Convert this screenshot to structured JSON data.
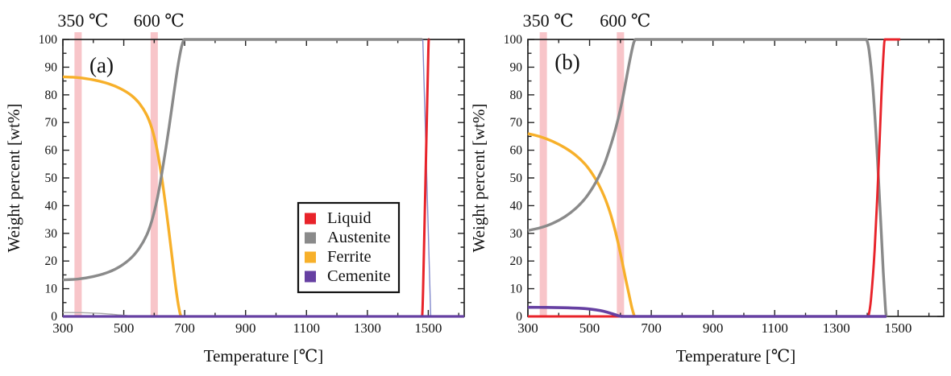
{
  "palette": {
    "liquid": "#e8232a",
    "austenite": "#8a8a8a",
    "ferrite": "#f7b02a",
    "cemenite": "#6640a2",
    "thin_blue": "#8289cc",
    "thin_gray": "#a6a6a6",
    "band": "#f8c5c9",
    "axis": "#222222",
    "text": "#111111"
  },
  "legend": {
    "entries": [
      {
        "label": "Liquid",
        "color": "liquid"
      },
      {
        "label": "Austenite",
        "color": "austenite"
      },
      {
        "label": "Ferrite",
        "color": "ferrite"
      },
      {
        "label": "Cemenite",
        "color": "cemenite"
      }
    ]
  },
  "chart_data": [
    {
      "id": "a",
      "type": "line",
      "panel_label": "(a)",
      "xlabel": "Temperature [℃]",
      "ylabel": "Weight percent [wt%]",
      "x_axis": {
        "min": 300,
        "max": 1618,
        "major_ticks": [
          300,
          500,
          700,
          900,
          1100,
          1300,
          1500
        ],
        "minor_ticks": [
          400,
          600,
          800,
          1000,
          1200,
          1400,
          1600
        ]
      },
      "y_axis": {
        "min": 0,
        "max": 100,
        "major_ticks": [
          0,
          10,
          20,
          30,
          40,
          50,
          60,
          70,
          80,
          90,
          100
        ],
        "minor_step": 5
      },
      "ylim": [
        0,
        100
      ],
      "bands": [
        {
          "t": 350,
          "label": "350 ℃"
        },
        {
          "t": 600,
          "label": "600 ℃"
        }
      ],
      "series": [
        {
          "name": "austenite-trace-low",
          "color": "thin_gray",
          "width": 1.4,
          "segments": [
            {
              "smooth": true,
              "points": [
                [
                  300,
                  1.4
                ],
                [
                  360,
                  1.35
                ],
                [
                  420,
                  1.1
                ],
                [
                  465,
                  0.75
                ],
                [
                  500,
                  0.4
                ],
                [
                  528,
                  0.12
                ],
                [
                  548,
                  0
                ]
              ]
            }
          ]
        },
        {
          "name": "Ferrite",
          "color": "ferrite",
          "width": 3.4,
          "segments": [
            {
              "smooth": true,
              "points": [
                [
                  300,
                  86.5
                ],
                [
                  350,
                  86.2
                ],
                [
                  400,
                  85.4
                ],
                [
                  450,
                  84
                ],
                [
                  490,
                  82.2
                ],
                [
                  525,
                  79.8
                ],
                [
                  552,
                  76.8
                ],
                [
                  575,
                  72.8
                ],
                [
                  592,
                  68
                ],
                [
                  606,
                  62
                ],
                [
                  617,
                  55.5
                ],
                [
                  627,
                  48.5
                ],
                [
                  637,
                  40.5
                ],
                [
                  648,
                  31
                ],
                [
                  659,
                  21
                ],
                [
                  669,
                  12
                ],
                [
                  678,
                  5
                ],
                [
                  685,
                  1
                ],
                [
                  689,
                  0
                ]
              ]
            }
          ]
        },
        {
          "name": "Austenite",
          "color": "austenite",
          "width": 3.4,
          "segments": [
            {
              "smooth": true,
              "points": [
                [
                  300,
                  13.2
                ],
                [
                  350,
                  13.5
                ],
                [
                  400,
                  14.4
                ],
                [
                  450,
                  16
                ],
                [
                  490,
                  18.2
                ],
                [
                  525,
                  21.2
                ],
                [
                  552,
                  24.8
                ],
                [
                  575,
                  29.3
                ],
                [
                  592,
                  34.5
                ],
                [
                  606,
                  40.5
                ],
                [
                  617,
                  46.5
                ],
                [
                  627,
                  53
                ],
                [
                  638,
                  60.5
                ],
                [
                  649,
                  68.5
                ],
                [
                  660,
                  77
                ],
                [
                  671,
                  85.5
                ],
                [
                  681,
                  92.5
                ],
                [
                  690,
                  97.5
                ],
                [
                  697,
                  99.8
                ],
                [
                  700,
                  100
                ]
              ]
            },
            {
              "smooth": false,
              "points": [
                [
                  700,
                  100
                ],
                [
                  1480,
                  100
                ]
              ]
            }
          ]
        },
        {
          "name": "austenite-melt-thin",
          "color": "thin_blue",
          "width": 1.4,
          "segments": [
            {
              "smooth": false,
              "points": [
                [
                  1482,
                  100
                ],
                [
                  1508,
                  0
                ]
              ]
            }
          ]
        },
        {
          "name": "Liquid",
          "color": "liquid",
          "width": 3.0,
          "segments": [
            {
              "smooth": false,
              "points": [
                [
                  300,
                  0
                ],
                [
                  1480,
                  0
                ]
              ]
            },
            {
              "smooth": true,
              "points": [
                [
                  1480,
                  0
                ],
                [
                  1483,
                  10
                ],
                [
                  1492,
                  55
                ],
                [
                  1500,
                  95
                ],
                [
                  1502,
                  100
                ]
              ]
            }
          ]
        },
        {
          "name": "Cemenite",
          "color": "cemenite",
          "width": 3.2,
          "segments": [
            {
              "smooth": false,
              "points": [
                [
                  300,
                  0
                ],
                [
                  1618,
                  0
                ]
              ]
            }
          ]
        }
      ]
    },
    {
      "id": "b",
      "type": "line",
      "panel_label": "(b)",
      "xlabel": "Temperature [℃]",
      "ylabel": "Weight percent [wt%]",
      "x_axis": {
        "min": 300,
        "max": 1648,
        "major_ticks": [
          300,
          500,
          700,
          900,
          1100,
          1300,
          1500
        ],
        "minor_ticks": [
          400,
          600,
          800,
          1000,
          1200,
          1400,
          1600
        ]
      },
      "y_axis": {
        "min": 0,
        "max": 100,
        "major_ticks": [
          0,
          10,
          20,
          30,
          40,
          50,
          60,
          70,
          80,
          90,
          100
        ],
        "minor_step": 5
      },
      "ylim": [
        0,
        100
      ],
      "bands": [
        {
          "t": 350,
          "label": "350 ℃"
        },
        {
          "t": 600,
          "label": "600 ℃"
        }
      ],
      "series": [
        {
          "name": "Ferrite",
          "color": "ferrite",
          "width": 3.4,
          "segments": [
            {
              "smooth": true,
              "points": [
                [
                  300,
                  66
                ],
                [
                  340,
                  64.9
                ],
                [
                  380,
                  63.2
                ],
                [
                  420,
                  60.9
                ],
                [
                  455,
                  58.2
                ],
                [
                  485,
                  55
                ],
                [
                  510,
                  51.3
                ],
                [
                  530,
                  47.5
                ],
                [
                  548,
                  43.2
                ],
                [
                  565,
                  38
                ],
                [
                  580,
                  32.2
                ],
                [
                  594,
                  25.8
                ],
                [
                  606,
                  19.5
                ],
                [
                  617,
                  13.5
                ],
                [
                  628,
                  7.8
                ],
                [
                  637,
                  3.2
                ],
                [
                  644,
                  0.5
                ],
                [
                  647,
                  0
                ]
              ]
            }
          ]
        },
        {
          "name": "Austenite",
          "color": "austenite",
          "width": 3.4,
          "segments": [
            {
              "smooth": true,
              "points": [
                [
                  300,
                  31
                ],
                [
                  340,
                  32
                ],
                [
                  380,
                  33.6
                ],
                [
                  420,
                  36
                ],
                [
                  455,
                  39
                ],
                [
                  485,
                  42.5
                ],
                [
                  510,
                  46.5
                ],
                [
                  530,
                  50.5
                ],
                [
                  548,
                  55
                ],
                [
                  565,
                  60.5
                ],
                [
                  580,
                  66
                ],
                [
                  594,
                  72
                ],
                [
                  606,
                  78
                ],
                [
                  617,
                  84.5
                ],
                [
                  627,
                  90.5
                ],
                [
                  636,
                  95.5
                ],
                [
                  643,
                  98.8
                ],
                [
                  648,
                  100
                ]
              ]
            },
            {
              "smooth": false,
              "points": [
                [
                  648,
                  100
                ],
                [
                  1398,
                  100
                ]
              ]
            },
            {
              "smooth": true,
              "points": [
                [
                  1398,
                  100
                ],
                [
                  1406,
                  96
                ],
                [
                  1418,
                  83
                ],
                [
                  1430,
                  63
                ],
                [
                  1442,
                  38
                ],
                [
                  1452,
                  16
                ],
                [
                  1459,
                  3
                ],
                [
                  1462,
                  0
                ]
              ]
            }
          ]
        },
        {
          "name": "Liquid",
          "color": "liquid",
          "width": 2.9,
          "segments": [
            {
              "smooth": false,
              "points": [
                [
                  300,
                  0
                ],
                [
                  1404,
                  0
                ]
              ]
            },
            {
              "smooth": true,
              "points": [
                [
                  1404,
                  0
                ],
                [
                  1412,
                  6
                ],
                [
                  1424,
                  24
                ],
                [
                  1436,
                  52
                ],
                [
                  1446,
                  80
                ],
                [
                  1454,
                  97
                ],
                [
                  1457,
                  100
                ]
              ]
            },
            {
              "smooth": false,
              "points": [
                [
                  1457,
                  100
                ],
                [
                  1507,
                  100
                ]
              ]
            }
          ]
        },
        {
          "name": "Cemenite",
          "color": "cemenite",
          "width": 3.6,
          "segments": [
            {
              "smooth": true,
              "points": [
                [
                  300,
                  3.3
                ],
                [
                  360,
                  3.25
                ],
                [
                  415,
                  3.15
                ],
                [
                  465,
                  2.95
                ],
                [
                  505,
                  2.6
                ],
                [
                  535,
                  2.1
                ],
                [
                  558,
                  1.5
                ],
                [
                  578,
                  0.8
                ],
                [
                  592,
                  0.3
                ],
                [
                  602,
                  0.05
                ],
                [
                  608,
                  0
                ]
              ]
            },
            {
              "smooth": false,
              "points": [
                [
                  608,
                  0
                ],
                [
                  1462,
                  0
                ]
              ]
            }
          ]
        }
      ]
    }
  ]
}
